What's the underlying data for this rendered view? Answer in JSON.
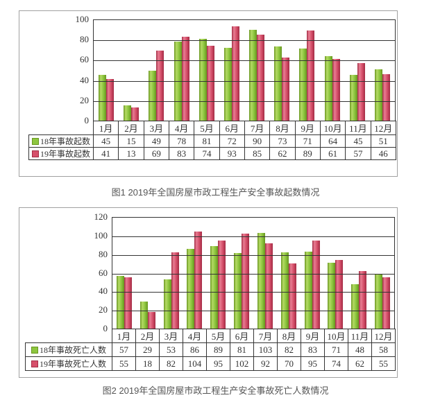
{
  "colors": {
    "series_green": "#8dc63f",
    "series_green_light": "#b5da65",
    "series_green_dark": "#68961f",
    "series_red": "#d6506b",
    "series_red_light": "#e87e93",
    "series_red_dark": "#a32b44",
    "figure_border": "#a0a0a0",
    "axis_line": "#333333",
    "text": "#333333",
    "caption_text": "#555555"
  },
  "chart_data": [
    {
      "type": "bar",
      "title": "图1 2019年全国房屋市政工程生产安全事故起数情况",
      "categories": [
        "1月",
        "2月",
        "3月",
        "4月",
        "5月",
        "6月",
        "7月",
        "8月",
        "9月",
        "10月",
        "11月",
        "12月"
      ],
      "series": [
        {
          "name": "18年事故起数",
          "color": "green",
          "values": [
            45,
            15,
            49,
            78,
            81,
            72,
            90,
            73,
            71,
            64,
            45,
            51
          ]
        },
        {
          "name": "19年事故起数",
          "color": "red",
          "values": [
            41,
            13,
            69,
            83,
            74,
            93,
            85,
            62,
            89,
            61,
            57,
            46
          ]
        }
      ],
      "xlabel": "",
      "ylabel": "",
      "ylim": [
        0,
        100
      ],
      "ytick_step": 20,
      "grid": true,
      "legend_position": "table-left"
    },
    {
      "type": "bar",
      "title": "图2 2019年全国房屋市政工程生产安全事故死亡人数情况",
      "categories": [
        "1月",
        "2月",
        "3月",
        "4月",
        "5月",
        "6月",
        "7月",
        "8月",
        "9月",
        "10月",
        "11月",
        "12月"
      ],
      "series": [
        {
          "name": "18年事故死亡人数",
          "color": "green",
          "values": [
            57,
            29,
            53,
            86,
            89,
            81,
            103,
            82,
            83,
            71,
            48,
            58
          ]
        },
        {
          "name": "19年事故死亡人数",
          "color": "red",
          "values": [
            55,
            18,
            82,
            104,
            95,
            102,
            92,
            70,
            95,
            74,
            62,
            55
          ]
        }
      ],
      "xlabel": "",
      "ylabel": "",
      "ylim": [
        0,
        120
      ],
      "ytick_step": 20,
      "grid": true,
      "legend_position": "table-left"
    }
  ]
}
